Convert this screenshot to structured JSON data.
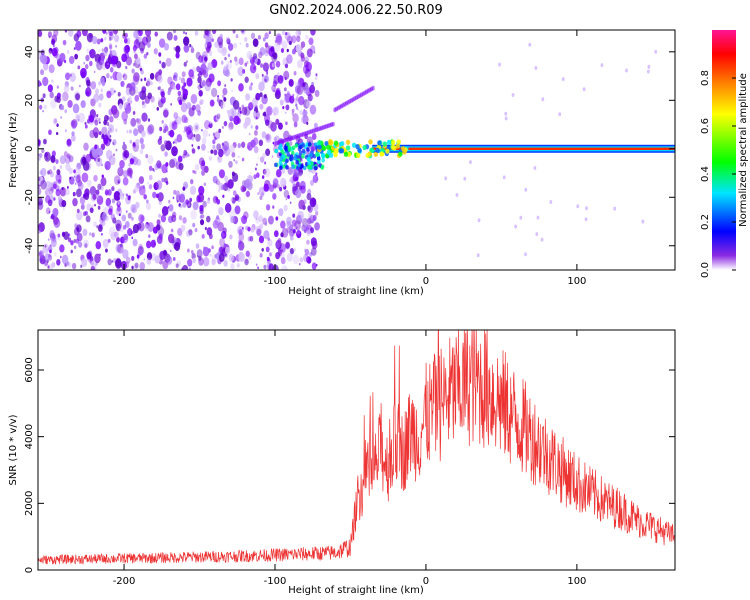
{
  "figure_title": "GN02.2024.006.22.50.R09",
  "chart_data": [
    {
      "type": "heatmap",
      "title": "",
      "xlabel": "Height of straight line (km)",
      "ylabel": "Frequency (Hz)",
      "xlim": [
        -257,
        165
      ],
      "ylim": [
        -50,
        49
      ],
      "x_ticks": [
        -200,
        -100,
        0,
        100
      ],
      "y_ticks": [
        -40,
        -20,
        0,
        20,
        40
      ],
      "grid": false,
      "colorbar": {
        "label": "Normalized spectral amplitude",
        "range": [
          0,
          1
        ],
        "ticks": [
          0.0,
          0.2,
          0.4,
          0.6,
          0.8
        ],
        "colormap": [
          "#ffffff",
          "#8a2be2",
          "#0000ff",
          "#00e5ff",
          "#00ff00",
          "#ffff00",
          "#ff7f00",
          "#ff0000",
          "#ff1493"
        ]
      },
      "features": [
        {
          "name": "broadband noise region",
          "x_range": [
            -257,
            -72
          ],
          "freq_range": [
            -50,
            49
          ],
          "amplitude": 0.1
        },
        {
          "name": "narrowband signal line",
          "x_range": [
            -72,
            165
          ],
          "freq": 0,
          "amplitude": 0.9
        },
        {
          "name": "transition chirp",
          "x_range": [
            -100,
            -35
          ],
          "freq_range": [
            -10,
            25
          ],
          "amplitude": 0.3
        }
      ]
    },
    {
      "type": "line",
      "title": "",
      "xlabel": "Height of straight line (km)",
      "ylabel": "SNR (10 * v/v)",
      "xlim": [
        -257,
        165
      ],
      "ylim": [
        0,
        7200
      ],
      "x_ticks": [
        -200,
        -100,
        0,
        100
      ],
      "y_ticks": [
        0,
        2000,
        4000,
        6000
      ],
      "grid": false,
      "series": [
        {
          "name": "",
          "color": "#ee3333",
          "x": [
            -257,
            -240,
            -220,
            -200,
            -180,
            -160,
            -140,
            -120,
            -100,
            -80,
            -60,
            -50,
            -45,
            -40,
            -35,
            -30,
            -25,
            -20,
            -15,
            -10,
            -5,
            0,
            10,
            20,
            30,
            40,
            50,
            60,
            70,
            80,
            90,
            100,
            110,
            120,
            130,
            140,
            150,
            160,
            165
          ],
          "y": [
            300,
            320,
            330,
            350,
            360,
            380,
            400,
            420,
            450,
            480,
            520,
            700,
            2200,
            2600,
            2900,
            3600,
            3100,
            3900,
            3500,
            4200,
            4000,
            4600,
            5000,
            5400,
            5700,
            5500,
            5000,
            4500,
            4000,
            3500,
            3000,
            2600,
            2300,
            2000,
            1800,
            1500,
            1300,
            1100,
            1000
          ]
        }
      ]
    }
  ]
}
